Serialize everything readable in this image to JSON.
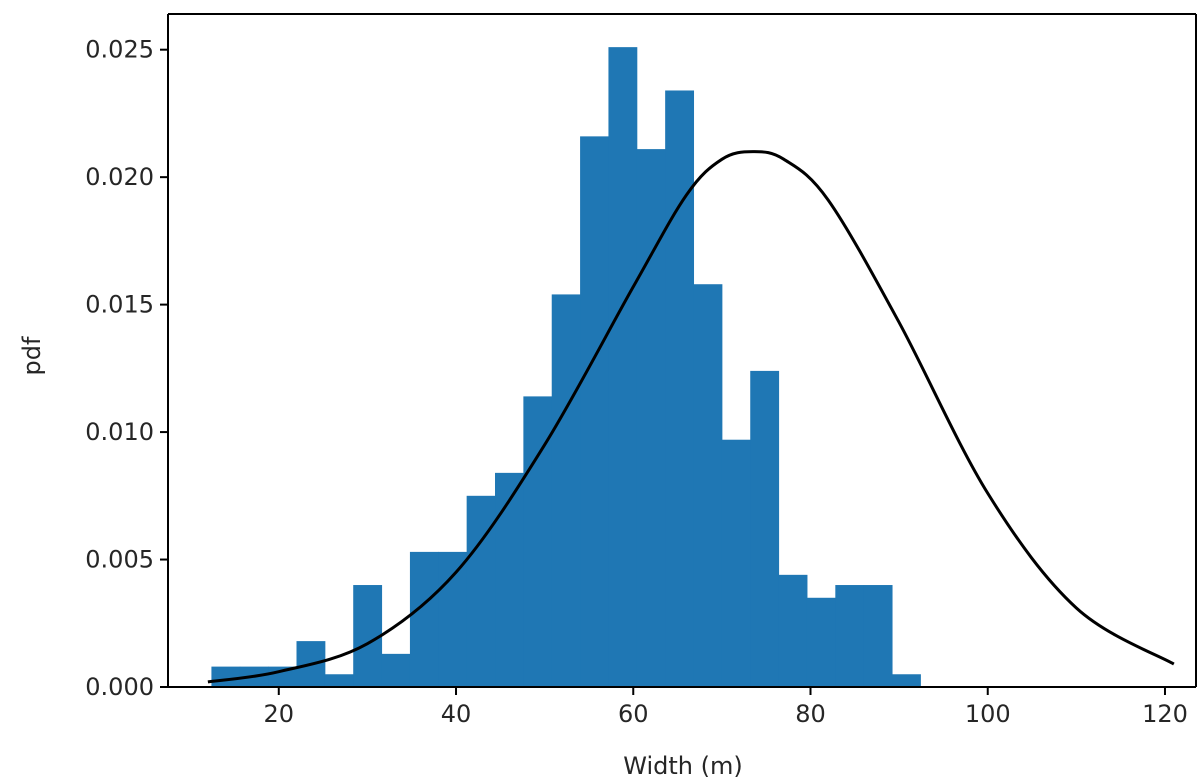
{
  "chart_data": {
    "type": "bar",
    "xlabel": "Width (m)",
    "ylabel": "pdf",
    "xlim": [
      7.5,
      123.5
    ],
    "ylim": [
      0,
      0.0264
    ],
    "xticks": [
      20,
      40,
      60,
      80,
      100,
      120
    ],
    "xtick_labels": [
      "20",
      "40",
      "60",
      "80",
      "100",
      "120"
    ],
    "yticks": [
      0.0,
      0.005,
      0.01,
      0.015,
      0.02,
      0.025
    ],
    "ytick_labels": [
      "0.000",
      "0.005",
      "0.010",
      "0.015",
      "0.020",
      "0.025"
    ],
    "grid": false,
    "bar_color": "#1f77b4",
    "curve_color": "#000000",
    "series": [
      {
        "kind": "histogram",
        "bins": [
          {
            "x0": 12.4,
            "x1": 15.6,
            "value": 0.0008
          },
          {
            "x0": 15.6,
            "x1": 18.8,
            "value": 0.0008
          },
          {
            "x0": 18.8,
            "x1": 22.0,
            "value": 0.0008
          },
          {
            "x0": 22.0,
            "x1": 25.2,
            "value": 0.0018
          },
          {
            "x0": 25.2,
            "x1": 28.4,
            "value": 0.0005
          },
          {
            "x0": 28.4,
            "x1": 31.6,
            "value": 0.004
          },
          {
            "x0": 31.6,
            "x1": 34.8,
            "value": 0.0013
          },
          {
            "x0": 34.8,
            "x1": 38.0,
            "value": 0.0053
          },
          {
            "x0": 38.0,
            "x1": 41.2,
            "value": 0.0053
          },
          {
            "x0": 41.2,
            "x1": 44.4,
            "value": 0.0075
          },
          {
            "x0": 44.4,
            "x1": 47.6,
            "value": 0.0084
          },
          {
            "x0": 47.6,
            "x1": 50.8,
            "value": 0.0114
          },
          {
            "x0": 50.8,
            "x1": 54.0,
            "value": 0.0154
          },
          {
            "x0": 54.0,
            "x1": 57.2,
            "value": 0.0216
          },
          {
            "x0": 57.2,
            "x1": 60.4,
            "value": 0.0251
          },
          {
            "x0": 60.4,
            "x1": 63.6,
            "value": 0.0211
          },
          {
            "x0": 63.6,
            "x1": 66.8,
            "value": 0.0234
          },
          {
            "x0": 66.8,
            "x1": 70.0,
            "value": 0.0158
          },
          {
            "x0": 70.0,
            "x1": 73.2,
            "value": 0.0097
          },
          {
            "x0": 73.2,
            "x1": 76.4,
            "value": 0.0124
          },
          {
            "x0": 76.4,
            "x1": 79.6,
            "value": 0.0044
          },
          {
            "x0": 79.6,
            "x1": 82.8,
            "value": 0.0035
          },
          {
            "x0": 82.8,
            "x1": 86.0,
            "value": 0.004
          },
          {
            "x0": 86.0,
            "x1": 89.2,
            "value": 0.004
          },
          {
            "x0": 89.2,
            "x1": 92.4,
            "value": 0.0005
          }
        ]
      },
      {
        "kind": "line",
        "points": [
          {
            "x": 12.0,
            "y": 0.0002
          },
          {
            "x": 20.0,
            "y": 0.0006
          },
          {
            "x": 30.0,
            "y": 0.0017
          },
          {
            "x": 40.0,
            "y": 0.0045
          },
          {
            "x": 50.0,
            "y": 0.0095
          },
          {
            "x": 60.0,
            "y": 0.0157
          },
          {
            "x": 66.0,
            "y": 0.0193
          },
          {
            "x": 70.0,
            "y": 0.0207
          },
          {
            "x": 73.5,
            "y": 0.021
          },
          {
            "x": 77.0,
            "y": 0.0207
          },
          {
            "x": 82.0,
            "y": 0.0191
          },
          {
            "x": 90.0,
            "y": 0.0143
          },
          {
            "x": 100.0,
            "y": 0.0076
          },
          {
            "x": 110.0,
            "y": 0.0031
          },
          {
            "x": 121.0,
            "y": 0.0009
          }
        ]
      }
    ]
  }
}
